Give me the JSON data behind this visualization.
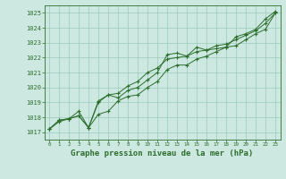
{
  "title": "Graphe pression niveau de la mer (hPa)",
  "bg_color": "#cce8e0",
  "grid_color": "#99ccbb",
  "line_color": "#2d6e2d",
  "marker_color": "#2d6e2d",
  "ylim": [
    1016.5,
    1025.5
  ],
  "yticks": [
    1017,
    1018,
    1019,
    1020,
    1021,
    1022,
    1023,
    1024,
    1025
  ],
  "xlim": [
    -0.5,
    23.5
  ],
  "xticks": [
    0,
    1,
    2,
    3,
    4,
    5,
    6,
    7,
    8,
    9,
    10,
    11,
    12,
    13,
    14,
    15,
    16,
    17,
    18,
    19,
    20,
    21,
    22,
    23
  ],
  "series1": [
    1017.2,
    1017.8,
    1017.9,
    1018.1,
    1017.3,
    1019.0,
    1019.5,
    1019.3,
    1019.8,
    1020.0,
    1020.5,
    1021.0,
    1022.2,
    1022.3,
    1022.1,
    1022.7,
    1022.5,
    1022.6,
    1022.7,
    1023.4,
    1023.6,
    1023.9,
    1024.6,
    1025.1
  ],
  "series2": [
    1017.2,
    1017.8,
    1017.9,
    1018.1,
    1017.3,
    1019.1,
    1019.5,
    1019.6,
    1020.1,
    1020.4,
    1021.0,
    1021.3,
    1021.9,
    1022.0,
    1022.1,
    1022.4,
    1022.5,
    1022.8,
    1022.9,
    1023.2,
    1023.5,
    1023.8,
    1024.3,
    1025.0
  ],
  "series3": [
    1017.2,
    1017.7,
    1017.9,
    1018.4,
    1017.3,
    1018.2,
    1018.4,
    1019.1,
    1019.4,
    1019.5,
    1020.0,
    1020.4,
    1021.2,
    1021.5,
    1021.5,
    1021.9,
    1022.1,
    1022.4,
    1022.7,
    1022.8,
    1023.2,
    1023.6,
    1023.9,
    1025.0
  ],
  "ylabel_fontsize": 5,
  "xlabel_fontsize": 4.2,
  "title_fontsize": 6.5
}
